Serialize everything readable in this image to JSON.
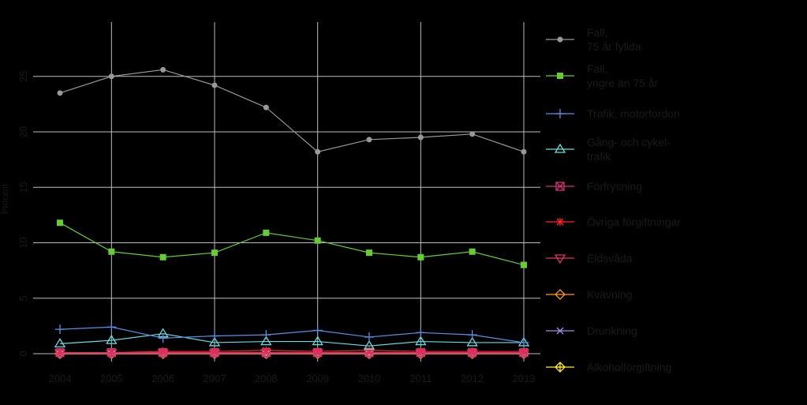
{
  "chart_data": {
    "type": "line",
    "ylabel": "Procent",
    "x": [
      "2004",
      "2005",
      "2006",
      "2007",
      "2008",
      "2009",
      "2010",
      "2011",
      "2012",
      "2013"
    ],
    "y_ticks": [
      "0",
      "5",
      "10",
      "15",
      "20",
      "25"
    ],
    "ylim": [
      0,
      27
    ],
    "grid": true,
    "legend_position": "right",
    "series": [
      {
        "name": "Fall, 75 år fyllda",
        "color": "#999999",
        "marker": "circle",
        "values": [
          23.5,
          25.0,
          25.6,
          24.2,
          22.2,
          18.2,
          19.3,
          19.5,
          19.8,
          18.2
        ]
      },
      {
        "name": "Fall, yngre än 75 år",
        "color": "#66cc33",
        "marker": "square",
        "values": [
          11.8,
          9.2,
          8.7,
          9.1,
          10.9,
          10.2,
          9.1,
          8.7,
          9.2,
          8.0
        ]
      },
      {
        "name": "Trafik, motorfordon",
        "color": "#5b8fe0",
        "marker": "plus",
        "values": [
          2.2,
          2.4,
          1.4,
          1.6,
          1.7,
          2.1,
          1.5,
          1.9,
          1.7,
          1.0
        ]
      },
      {
        "name": "Gång- och cykel-trafik",
        "color": "#66dddd",
        "marker": "triangle",
        "values": [
          0.9,
          1.2,
          1.8,
          1.0,
          1.1,
          1.1,
          0.7,
          1.1,
          1.0,
          1.0
        ]
      },
      {
        "name": "Förfrysning",
        "color": "#cc3377",
        "marker": "square-x",
        "values": [
          0.1,
          0.1,
          0.1,
          0.1,
          0.1,
          0.1,
          0.1,
          0.1,
          0.1,
          0.1
        ]
      },
      {
        "name": "Övriga förgiftningar",
        "color": "#ff2222",
        "marker": "asterisk",
        "values": [
          0.1,
          0.1,
          0.2,
          0.2,
          0.3,
          0.2,
          0.3,
          0.2,
          0.2,
          0.2
        ]
      },
      {
        "name": "Eldsvåda",
        "color": "#dd3366",
        "marker": "triangle-down",
        "values": [
          0.05,
          0.05,
          0.05,
          0.05,
          0.05,
          0.05,
          0.05,
          0.05,
          0.05,
          0.05
        ]
      },
      {
        "name": "Kvävning",
        "color": "#ff9922",
        "marker": "diamond",
        "values": [
          0,
          0,
          0,
          0,
          0,
          0,
          0,
          0,
          0,
          0
        ]
      },
      {
        "name": "Drunkning",
        "color": "#aa88dd",
        "marker": "x",
        "values": [
          0,
          0,
          0,
          0,
          0,
          0,
          0,
          0,
          0,
          0
        ]
      },
      {
        "name": "Alkoholförgiftning",
        "color": "#ffee22",
        "marker": "diamond-plus",
        "values": [
          0,
          0,
          0,
          0,
          0,
          0,
          0,
          0,
          0,
          0
        ]
      }
    ]
  },
  "legend": {
    "items": [
      {
        "lines": [
          "Fall,",
          "75 år fyllda"
        ]
      },
      {
        "lines": [
          "Fall,",
          "yngre än 75 år"
        ]
      },
      {
        "lines": [
          "Trafik, motorfordon"
        ]
      },
      {
        "lines": [
          "Gång- och cykel-",
          "trafik"
        ]
      },
      {
        "lines": [
          "Förfrysning"
        ]
      },
      {
        "lines": [
          "Övriga förgiftningar"
        ]
      },
      {
        "lines": [
          "Eldsvåda"
        ]
      },
      {
        "lines": [
          "Kvävning"
        ]
      },
      {
        "lines": [
          "Drunkning"
        ]
      },
      {
        "lines": [
          "Alkoholförgiftning"
        ]
      }
    ]
  }
}
